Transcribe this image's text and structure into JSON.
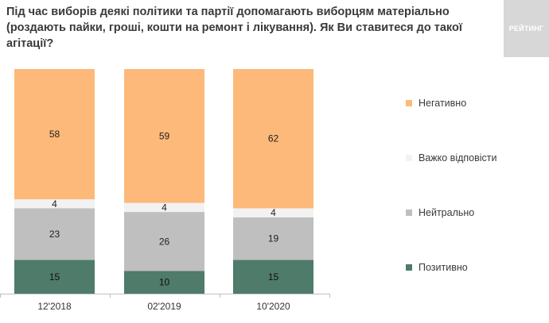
{
  "title": "Під час виборів деякі політики та партії допомагають виборцям матеріально (роздають пайки, гроші, кошти на ремонт і лікування). Як Ви ставитеся до такої агітації?",
  "logo_text": "РЕЙТИНГ",
  "colors": {
    "Негативно": "#fdb97a",
    "Важко відповісти": "#f2f2f2",
    "Нейтрально": "#bfbfbf",
    "Позитивно": "#4e7b6a"
  },
  "chart_data": {
    "type": "bar",
    "stacked": true,
    "normalized": true,
    "categories": [
      "12'2018",
      "02'2019",
      "10'2020"
    ],
    "series": [
      {
        "name": "Позитивно",
        "values": [
          15,
          10,
          15
        ]
      },
      {
        "name": "Нейтрально",
        "values": [
          23,
          26,
          19
        ]
      },
      {
        "name": "Важко відповісти",
        "values": [
          4,
          4,
          4
        ]
      },
      {
        "name": "Негативно",
        "values": [
          58,
          59,
          62
        ]
      }
    ],
    "legend": [
      "Негативно",
      "Важко відповісти",
      "Нейтрально",
      "Позитивно"
    ],
    "legend_position": "right",
    "grid": false
  }
}
